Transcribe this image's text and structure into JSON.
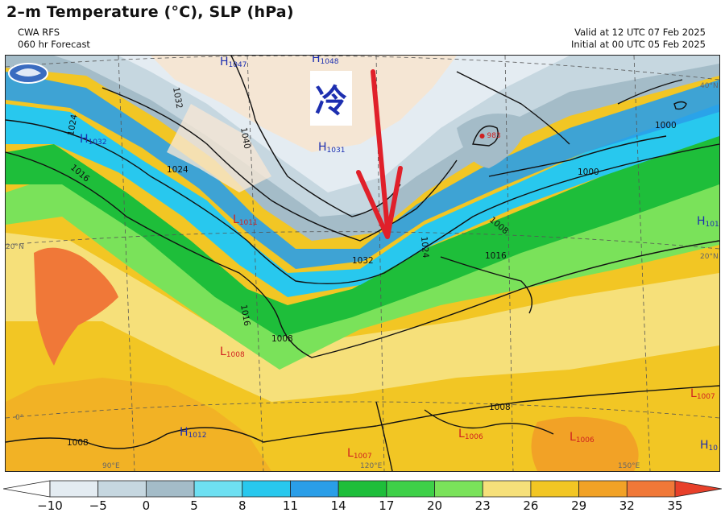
{
  "header": {
    "title": "2–m Temperature (°C), SLP (hPa)",
    "model": "CWA RFS",
    "forecast_hour": "060 hr Forecast",
    "valid": "Valid at 12 UTC 07 Feb 2025",
    "initial": "Initial at 00 UTC 05 Feb 2025"
  },
  "annotation": {
    "cold_label": "冷",
    "arrow_color": "#e0202a"
  },
  "pressure_centers": [
    {
      "type": "H",
      "value": "1047",
      "color": "#1d2fb0"
    },
    {
      "type": "H",
      "value": "1048",
      "color": "#1d2fb0"
    },
    {
      "type": "H",
      "value": "1031",
      "color": "#1d2fb0"
    },
    {
      "type": "H",
      "value": "1032",
      "color": "#1d2fb0"
    },
    {
      "type": "L",
      "value": "1011",
      "color": "#d02020"
    },
    {
      "type": "L",
      "value": "983",
      "color": "#d02020"
    },
    {
      "type": "L",
      "value": "1008",
      "color": "#d02020"
    },
    {
      "type": "H",
      "value": "1012",
      "color": "#1d2fb0"
    },
    {
      "type": "L",
      "value": "1007",
      "color": "#d02020"
    },
    {
      "type": "L",
      "value": "1006",
      "color": "#d02020"
    },
    {
      "type": "L",
      "value": "1006",
      "color": "#d02020"
    },
    {
      "type": "L",
      "value": "1007",
      "color": "#d02020"
    },
    {
      "type": "H",
      "value": "101",
      "color": "#1d2fb0"
    },
    {
      "type": "H",
      "value": "10",
      "color": "#1d2fb0"
    }
  ],
  "isobar_labels": [
    "1032",
    "1040",
    "1024",
    "1024",
    "1016",
    "1032",
    "1016",
    "1024",
    "1016",
    "1008",
    "1000",
    "1000",
    "1008",
    "1008",
    "1008"
  ],
  "lat_lon_labels": [
    "40°N",
    "20°N",
    "20°N",
    "0°",
    "90°E",
    "120°E",
    "150°E"
  ],
  "colorbar": {
    "ticks": [
      "−10",
      "−5",
      "0",
      "5",
      "8",
      "11",
      "14",
      "17",
      "20",
      "23",
      "26",
      "29",
      "32",
      "35"
    ],
    "colors": [
      "#ffffff",
      "#e4ecf2",
      "#c6d7e0",
      "#a4bcc8",
      "#6ee0f2",
      "#28c8ee",
      "#2a9ee8",
      "#1ebe3a",
      "#3ed048",
      "#7ae25a",
      "#f6e07a",
      "#f2c624",
      "#f2a226",
      "#f07838",
      "#e8402a"
    ]
  }
}
